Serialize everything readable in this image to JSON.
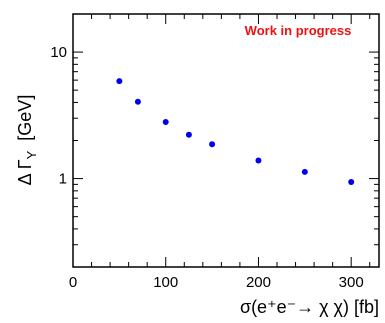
{
  "chart_data": {
    "type": "scatter",
    "title": "",
    "xlabel": "σ(e⁺e⁻→ χ χ)  [fb]",
    "ylabel": "Δ Γ",
    "ylabel_subscript": "Y",
    "ylabel_unit": "[GeV]",
    "annotation": "Work in progress",
    "annotation_color": "#ee1111",
    "marker_color": "#0000ee",
    "x_scale": "linear",
    "y_scale": "log",
    "xlim": [
      0,
      330
    ],
    "ylim": [
      0.2,
      20
    ],
    "x_ticks": [
      "0",
      "100",
      "200",
      "300"
    ],
    "y_ticks": [
      "1",
      "10"
    ],
    "grid": false,
    "series": [
      {
        "x": [
          50,
          70,
          100,
          125,
          150,
          200,
          250,
          300
        ],
        "y": [
          5.9,
          4.05,
          2.8,
          2.22,
          1.87,
          1.39,
          1.13,
          0.94
        ]
      }
    ]
  }
}
